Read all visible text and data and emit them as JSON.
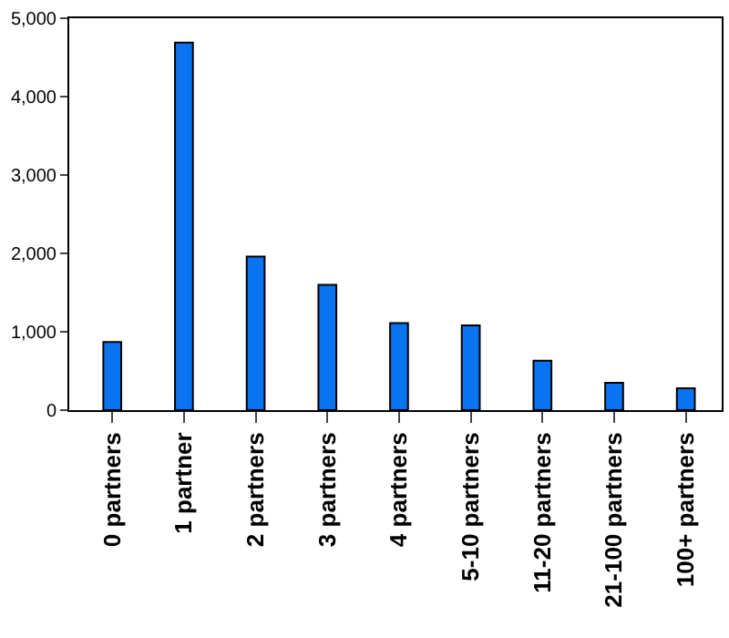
{
  "chart_data": {
    "type": "bar",
    "categories": [
      "0 partners",
      "1 partner",
      "2 partners",
      "3 partners",
      "4 partners",
      "5-10 partners",
      "11-20 partners",
      "21-100 partners",
      "100+ partners"
    ],
    "values": [
      870,
      4690,
      1960,
      1600,
      1110,
      1080,
      630,
      350,
      280
    ],
    "color": "#0a74f0",
    "ylim": [
      0,
      5000
    ],
    "yticks": [
      {
        "value": 0,
        "label": "0"
      },
      {
        "value": 1000,
        "label": "1,000"
      },
      {
        "value": 2000,
        "label": "2,000"
      },
      {
        "value": 3000,
        "label": "3,000"
      },
      {
        "value": 4000,
        "label": "4,000"
      },
      {
        "value": 5000,
        "label": "5,000"
      }
    ],
    "grid": false,
    "legend": false
  }
}
